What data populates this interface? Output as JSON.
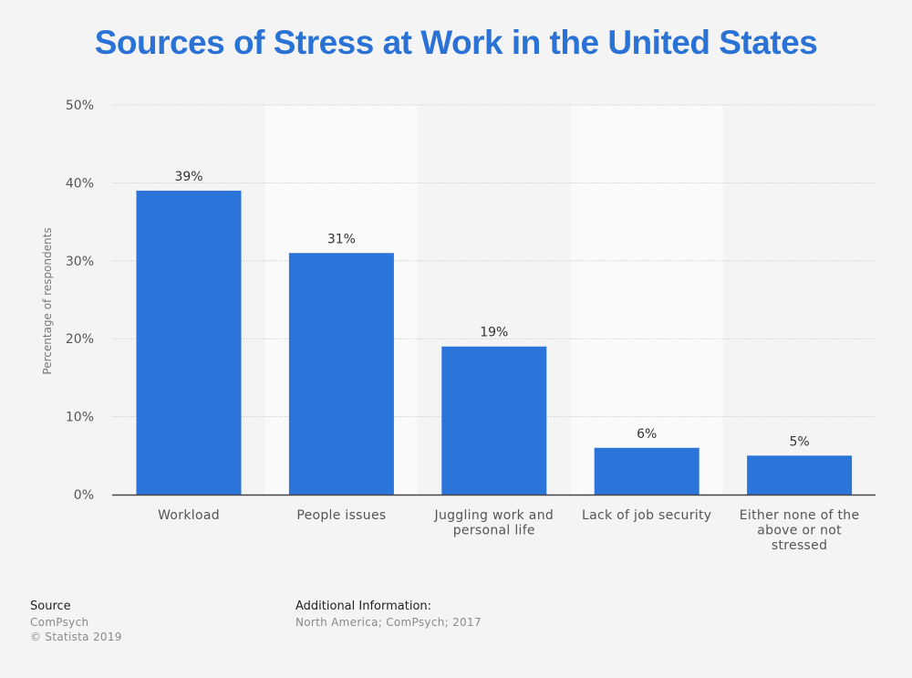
{
  "colors": {
    "bar": "#2a74da",
    "title": "#2a72d6",
    "band": "#fafafa",
    "grid": "#cfcfcf",
    "axis": "#444444"
  },
  "chart_data": {
    "type": "bar",
    "title": "Sources of Stress at Work in the United States",
    "xlabel": "",
    "ylabel": "Percentage of respondents",
    "ylim": [
      0,
      50
    ],
    "yticks": [
      0,
      10,
      20,
      30,
      40,
      50
    ],
    "ytick_labels": [
      "0%",
      "10%",
      "20%",
      "30%",
      "40%",
      "50%"
    ],
    "grid": true,
    "categories": [
      "Workload",
      "People issues",
      "Juggling work and personal life",
      "Lack of job security",
      "Either none of the above or not stressed"
    ],
    "category_lines": [
      [
        "Workload"
      ],
      [
        "People issues"
      ],
      [
        "Juggling work and",
        "personal life"
      ],
      [
        "Lack of job security"
      ],
      [
        "Either none of the",
        "above or not",
        "stressed"
      ]
    ],
    "values": [
      39,
      31,
      19,
      6,
      5
    ],
    "data_labels": [
      "39%",
      "31%",
      "19%",
      "6%",
      "5%"
    ]
  },
  "footer": {
    "source_heading": "Source",
    "source_lines": [
      "ComPsych",
      "© Statista 2019"
    ],
    "info_heading": "Additional Information:",
    "info_lines": [
      "North America; ComPsych; 2017"
    ]
  }
}
